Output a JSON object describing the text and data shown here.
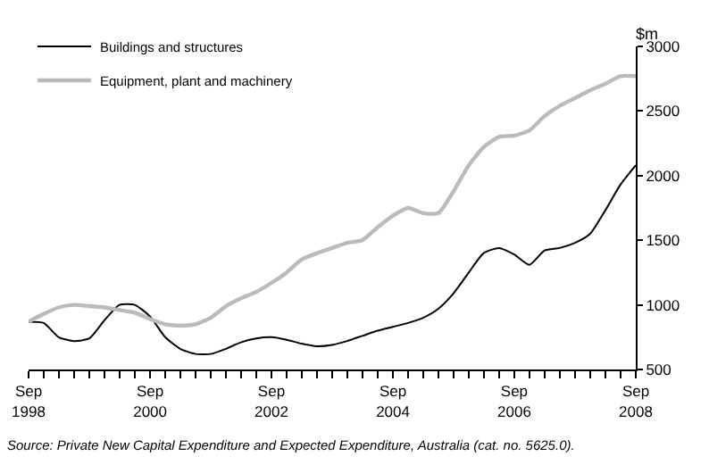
{
  "chart_data": {
    "type": "line",
    "ylabel": "$m",
    "x": [
      "1998-09",
      "1998-12",
      "1999-03",
      "1999-06",
      "1999-09",
      "1999-12",
      "2000-03",
      "2000-06",
      "2000-09",
      "2000-12",
      "2001-03",
      "2001-06",
      "2001-09",
      "2001-12",
      "2002-03",
      "2002-06",
      "2002-09",
      "2002-12",
      "2003-03",
      "2003-06",
      "2003-09",
      "2003-12",
      "2004-03",
      "2004-06",
      "2004-09",
      "2004-12",
      "2005-03",
      "2005-06",
      "2005-09",
      "2005-12",
      "2006-03",
      "2006-06",
      "2006-09",
      "2006-12",
      "2007-03",
      "2007-06",
      "2007-09",
      "2007-12",
      "2008-03",
      "2008-06",
      "2008-09"
    ],
    "series": [
      {
        "name": "Buildings and structures",
        "color": "#000000",
        "values": [
          870,
          860,
          750,
          720,
          740,
          880,
          1000,
          1000,
          910,
          750,
          660,
          620,
          620,
          660,
          710,
          740,
          750,
          730,
          700,
          680,
          690,
          720,
          760,
          800,
          830,
          860,
          900,
          970,
          1090,
          1250,
          1400,
          1440,
          1390,
          1310,
          1420,
          1440,
          1480,
          1550,
          1730,
          1930,
          2080
        ]
      },
      {
        "name": "Equipment, plant and machinery",
        "color": "#bbbbbb",
        "values": [
          870,
          930,
          980,
          1000,
          990,
          980,
          960,
          940,
          890,
          850,
          840,
          850,
          900,
          990,
          1050,
          1100,
          1170,
          1250,
          1350,
          1400,
          1440,
          1480,
          1500,
          1600,
          1690,
          1750,
          1710,
          1710,
          1880,
          2080,
          2220,
          2300,
          2310,
          2350,
          2460,
          2540,
          2600,
          2660,
          2710,
          2770,
          2770
        ]
      }
    ],
    "xlim": [
      "1998-09",
      "2008-09"
    ],
    "xticks": [
      {
        "value": "1998-09",
        "label": "Sep\n1998"
      },
      {
        "value": "1998-12",
        "label": null
      },
      {
        "value": "1999-03",
        "label": null
      },
      {
        "value": "1999-06",
        "label": null
      },
      {
        "value": "1999-09",
        "label": null
      },
      {
        "value": "1999-12",
        "label": null
      },
      {
        "value": "2000-03",
        "label": null
      },
      {
        "value": "2000-06",
        "label": null
      },
      {
        "value": "2000-09",
        "label": "Sep\n2000"
      },
      {
        "value": "2000-12",
        "label": null
      },
      {
        "value": "2001-03",
        "label": null
      },
      {
        "value": "2001-06",
        "label": null
      },
      {
        "value": "2001-09",
        "label": null
      },
      {
        "value": "2001-12",
        "label": null
      },
      {
        "value": "2002-03",
        "label": null
      },
      {
        "value": "2002-06",
        "label": null
      },
      {
        "value": "2002-09",
        "label": "Sep\n2002"
      },
      {
        "value": "2002-12",
        "label": null
      },
      {
        "value": "2003-03",
        "label": null
      },
      {
        "value": "2003-06",
        "label": null
      },
      {
        "value": "2003-09",
        "label": null
      },
      {
        "value": "2003-12",
        "label": null
      },
      {
        "value": "2004-03",
        "label": null
      },
      {
        "value": "2004-06",
        "label": null
      },
      {
        "value": "2004-09",
        "label": "Sep\n2004"
      },
      {
        "value": "2004-12",
        "label": null
      },
      {
        "value": "2005-03",
        "label": null
      },
      {
        "value": "2005-06",
        "label": null
      },
      {
        "value": "2005-09",
        "label": null
      },
      {
        "value": "2005-12",
        "label": null
      },
      {
        "value": "2006-03",
        "label": null
      },
      {
        "value": "2006-06",
        "label": null
      },
      {
        "value": "2006-09",
        "label": "Sep\n2006"
      },
      {
        "value": "2006-12",
        "label": null
      },
      {
        "value": "2007-03",
        "label": null
      },
      {
        "value": "2007-06",
        "label": null
      },
      {
        "value": "2007-09",
        "label": null
      },
      {
        "value": "2007-12",
        "label": null
      },
      {
        "value": "2008-03",
        "label": null
      },
      {
        "value": "2008-06",
        "label": null
      },
      {
        "value": "2008-09",
        "label": "Sep\n2008"
      }
    ],
    "ylim": [
      500,
      3000
    ],
    "yticks": [
      500,
      1000,
      1500,
      2000,
      2500,
      3000
    ],
    "grid": false,
    "legend": "top left",
    "marker": "none",
    "line_style": "solid",
    "annotations": [
      "Source: Private New Capital Expenditure and Expected Expenditure, Australia (cat. no. 5625.0)."
    ]
  }
}
